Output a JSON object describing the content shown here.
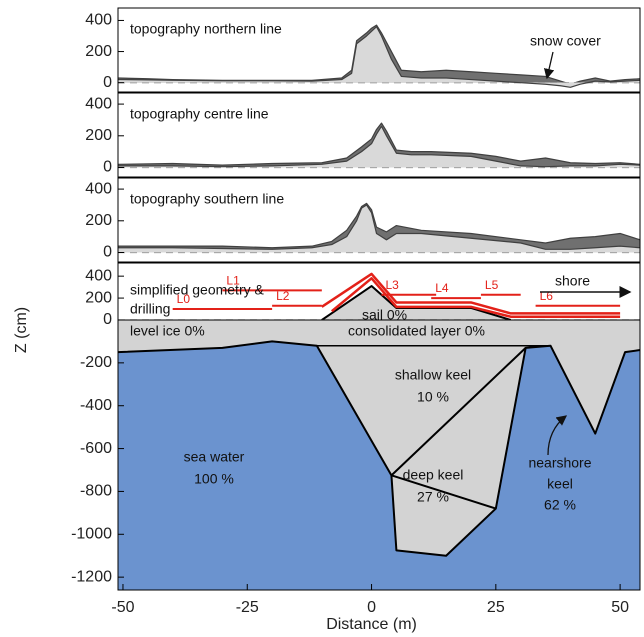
{
  "chart_data": [
    {
      "type": "area",
      "xlim": [
        -51,
        54
      ],
      "ylim": [
        -60,
        480
      ],
      "yticks": [
        0,
        200,
        400
      ],
      "zero_line": true,
      "annotations": [
        "topography northern line",
        "snow cover"
      ],
      "series": [
        {
          "color": "#404040",
          "fill": "#707070",
          "width": 1.2,
          "x": [
            -51,
            -45,
            -40,
            -30,
            -20,
            -12,
            -6,
            -4,
            -3,
            -1,
            0,
            1,
            2,
            4,
            6,
            10,
            15,
            20,
            25,
            30,
            35,
            38,
            40,
            42,
            45,
            48,
            51,
            54
          ],
          "values": [
            30,
            25,
            20,
            15,
            15,
            15,
            30,
            80,
            270,
            320,
            350,
            370,
            320,
            200,
            80,
            70,
            80,
            70,
            60,
            50,
            40,
            10,
            -10,
            10,
            30,
            10,
            20,
            25
          ]
        },
        {
          "color": "#404040",
          "fill": "#d9d9d9",
          "width": 1.2,
          "x": [
            -51,
            -45,
            -40,
            -30,
            -20,
            -12,
            -6,
            -4,
            -3,
            -1,
            0,
            1,
            2,
            4,
            6,
            10,
            15,
            20,
            25,
            30,
            35,
            38,
            40,
            42,
            45,
            48,
            51,
            54
          ],
          "values": [
            20,
            18,
            15,
            12,
            12,
            10,
            20,
            60,
            250,
            300,
            330,
            360,
            300,
            150,
            40,
            30,
            30,
            20,
            10,
            0,
            -10,
            -20,
            -30,
            -10,
            10,
            5,
            10,
            15
          ]
        }
      ]
    },
    {
      "type": "area",
      "xlim": [
        -51,
        54
      ],
      "ylim": [
        -60,
        470
      ],
      "yticks": [
        0,
        200,
        400
      ],
      "zero_line": true,
      "annotations": [
        "topography centre line"
      ],
      "series": [
        {
          "color": "#404040",
          "fill": "#707070",
          "width": 1.2,
          "x": [
            -51,
            -40,
            -30,
            -20,
            -10,
            -5,
            -2,
            0,
            1,
            2,
            3,
            5,
            8,
            12,
            20,
            25,
            30,
            35,
            40,
            45,
            50,
            54
          ],
          "values": [
            20,
            25,
            15,
            25,
            30,
            60,
            130,
            180,
            240,
            280,
            230,
            110,
            100,
            100,
            90,
            70,
            40,
            60,
            30,
            25,
            30,
            20
          ]
        },
        {
          "color": "#404040",
          "fill": "#d9d9d9",
          "width": 1.2,
          "x": [
            -51,
            -40,
            -30,
            -20,
            -10,
            -5,
            -2,
            0,
            1,
            2,
            3,
            5,
            8,
            12,
            20,
            25,
            30,
            35,
            40,
            45,
            50,
            54
          ],
          "values": [
            10,
            10,
            5,
            10,
            20,
            40,
            100,
            150,
            210,
            260,
            200,
            90,
            80,
            80,
            70,
            40,
            10,
            5,
            10,
            10,
            20,
            15
          ]
        }
      ]
    },
    {
      "type": "area",
      "xlim": [
        -51,
        54
      ],
      "ylim": [
        -60,
        470
      ],
      "yticks": [
        0,
        200,
        400
      ],
      "zero_line": true,
      "annotations": [
        "topography southern line"
      ],
      "series": [
        {
          "color": "#404040",
          "fill": "#707070",
          "width": 1.2,
          "x": [
            -51,
            -40,
            -30,
            -20,
            -12,
            -8,
            -5,
            -3,
            -2,
            -1,
            0,
            1,
            3,
            5,
            10,
            20,
            30,
            35,
            40,
            45,
            50,
            54
          ],
          "values": [
            40,
            40,
            40,
            30,
            40,
            70,
            140,
            230,
            290,
            310,
            270,
            160,
            130,
            170,
            140,
            120,
            80,
            60,
            90,
            100,
            120,
            80
          ]
        },
        {
          "color": "#404040",
          "fill": "#d9d9d9",
          "width": 1.2,
          "x": [
            -51,
            -40,
            -30,
            -20,
            -12,
            -8,
            -5,
            -3,
            -2,
            -1,
            0,
            1,
            3,
            5,
            10,
            20,
            30,
            35,
            40,
            45,
            50,
            54
          ],
          "values": [
            30,
            30,
            25,
            20,
            30,
            50,
            100,
            200,
            280,
            300,
            250,
            120,
            80,
            120,
            120,
            90,
            60,
            20,
            20,
            30,
            40,
            30
          ]
        }
      ]
    },
    {
      "type": "area",
      "xlim": [
        -51,
        54
      ],
      "ylim": [
        0,
        520
      ],
      "yticks": [
        0,
        200,
        400
      ],
      "zero_line": true,
      "annotations": [
        "simplified geometry &",
        "drilling",
        "shore",
        "sail 0%"
      ],
      "series": [
        {
          "color": "#000000",
          "fill": "#d3d3d3",
          "width": 2,
          "x": [
            -10,
            0,
            5,
            20,
            28
          ],
          "values": [
            0,
            310,
            110,
            110,
            0
          ]
        },
        {
          "color": "#e32119",
          "width": 2.5,
          "x": [
            -10,
            0,
            5,
            20,
            28,
            50
          ],
          "values": [
            120,
            420,
            160,
            160,
            60,
            60
          ]
        },
        {
          "color": "#e32119",
          "width": 2.5,
          "x": [
            -8,
            0,
            5,
            20,
            28,
            50
          ],
          "values": [
            80,
            380,
            120,
            120,
            30,
            30
          ]
        },
        {
          "name": "L0",
          "color": "#e32119",
          "width": 2,
          "x": [
            -40,
            -20
          ],
          "values": [
            100,
            100
          ]
        },
        {
          "name": "L1",
          "color": "#e32119",
          "width": 2,
          "x": [
            -30,
            -10
          ],
          "values": [
            270,
            270
          ]
        },
        {
          "name": "L2",
          "color": "#e32119",
          "width": 2,
          "x": [
            -20,
            -10
          ],
          "values": [
            130,
            130
          ]
        },
        {
          "name": "L3",
          "color": "#e32119",
          "width": 2,
          "x": [
            2,
            13
          ],
          "values": [
            230,
            230
          ]
        },
        {
          "name": "L4",
          "color": "#e32119",
          "width": 2,
          "x": [
            12,
            22
          ],
          "values": [
            200,
            200
          ]
        },
        {
          "name": "L5",
          "color": "#e32119",
          "width": 2,
          "x": [
            22,
            30
          ],
          "values": [
            230,
            230
          ]
        },
        {
          "name": "L6",
          "color": "#e32119",
          "width": 2,
          "x": [
            33,
            50
          ],
          "values": [
            130,
            130
          ]
        }
      ]
    },
    {
      "type": "area",
      "xlim": [
        -51,
        54
      ],
      "ylim": [
        -1260,
        0
      ],
      "yticks": [
        -200,
        -400,
        -600,
        -800,
        -1000,
        -1200
      ],
      "xticks": [
        -50,
        -25,
        0,
        25,
        50
      ],
      "xlabel": "Distance (m)",
      "ylabel": "Z (cm)",
      "background": "#6b93cf",
      "annotations": [
        "level ice 0%",
        "consolidated layer 0%",
        "shallow keel",
        "10 %",
        "deep keel",
        "27 %",
        "nearshore",
        "keel",
        "62 %",
        "sea water",
        "100 %"
      ],
      "series": [
        {
          "color": "#000000",
          "fill": "#d3d3d3",
          "width": 2,
          "x": [
            -51,
            -30,
            -20,
            -11,
            4,
            5,
            15,
            25,
            31,
            36,
            45,
            51,
            54
          ],
          "values": [
            -150,
            -130,
            -100,
            -120,
            -725,
            -1075,
            -1100,
            -880,
            -130,
            -120,
            -530,
            -150,
            -140
          ]
        },
        {
          "color": "#000000",
          "width": 2,
          "x": [
            4,
            31
          ],
          "values": [
            -725,
            -130
          ]
        },
        {
          "color": "#000000",
          "width": 2,
          "x": [
            4,
            25
          ],
          "values": [
            -725,
            -880
          ]
        },
        {
          "color": "#000000",
          "width": 1.5,
          "x": [
            -11,
            36
          ],
          "values": [
            -120,
            -120
          ]
        }
      ]
    }
  ]
}
